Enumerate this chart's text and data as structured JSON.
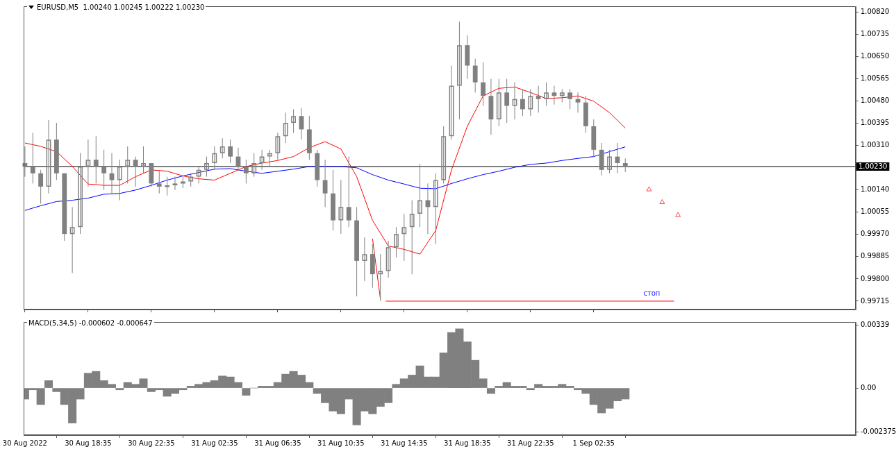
{
  "chart_data": [
    {
      "type": "candlestick",
      "title": "EURUSD,M5  1.00240 1.00245 1.00222 1.00230",
      "color": "#808080",
      "x": [
        "2022-08-30T14:35",
        "2022-08-30T15:05",
        "2022-08-30T15:35",
        "2022-08-30T16:05",
        "2022-08-30T16:35",
        "2022-08-30T17:05",
        "2022-08-30T17:35",
        "2022-08-30T18:05",
        "2022-08-30T18:35",
        "2022-08-30T19:05",
        "2022-08-30T19:35",
        "2022-08-30T20:05",
        "2022-08-30T20:35",
        "2022-08-30T21:05",
        "2022-08-30T21:35",
        "2022-08-30T22:05",
        "2022-08-30T22:35",
        "2022-08-30T23:05",
        "2022-08-30T23:35",
        "2022-08-31T00:05",
        "2022-08-31T00:35",
        "2022-08-31T01:05",
        "2022-08-31T01:35",
        "2022-08-31T02:05",
        "2022-08-31T02:35",
        "2022-08-31T03:05",
        "2022-08-31T03:35",
        "2022-08-31T04:05",
        "2022-08-31T04:35",
        "2022-08-31T05:05",
        "2022-08-31T05:35",
        "2022-08-31T06:05",
        "2022-08-31T06:35",
        "2022-08-31T07:05",
        "2022-08-31T07:35",
        "2022-08-31T08:05",
        "2022-08-31T08:35",
        "2022-08-31T09:05",
        "2022-08-31T09:35",
        "2022-08-31T10:05",
        "2022-08-31T10:35",
        "2022-08-31T11:05",
        "2022-08-31T11:35",
        "2022-08-31T12:05",
        "2022-08-31T12:35",
        "2022-08-31T13:05",
        "2022-08-31T13:35",
        "2022-08-31T14:05",
        "2022-08-31T14:35",
        "2022-08-31T15:05",
        "2022-08-31T15:35",
        "2022-08-31T16:05",
        "2022-08-31T16:35",
        "2022-08-31T17:05",
        "2022-08-31T17:35",
        "2022-08-31T18:05",
        "2022-08-31T18:35",
        "2022-08-31T19:05",
        "2022-08-31T19:35",
        "2022-08-31T20:05",
        "2022-08-31T20:35",
        "2022-08-31T21:05",
        "2022-08-31T21:35",
        "2022-08-31T22:05",
        "2022-08-31T22:35",
        "2022-08-31T23:05",
        "2022-08-31T23:35",
        "2022-09-01T00:05",
        "2022-09-01T00:35",
        "2022-09-01T01:05",
        "2022-09-01T01:35",
        "2022-09-01T02:05",
        "2022-09-01T02:35",
        "2022-09-01T03:05",
        "2022-09-01T03:35",
        "2022-09-01T04:05",
        "2022-09-01T04:35"
      ],
      "ohlc": [
        [
          1.00243,
          1.00307,
          1.00191,
          1.0023
        ],
        [
          1.0023,
          1.00359,
          1.00165,
          1.00204
        ],
        [
          1.00204,
          1.00217,
          1.00088,
          1.00153
        ],
        [
          1.00153,
          1.00408,
          1.00127,
          1.00333
        ],
        [
          1.00333,
          1.00397,
          1.00178,
          1.00204
        ],
        [
          1.00204,
          1.00204,
          0.99946,
          0.99972
        ],
        [
          0.99972,
          1.00075,
          0.99823,
          0.99998
        ],
        [
          0.99998,
          1.00281,
          0.99972,
          1.0023
        ],
        [
          1.0023,
          1.00333,
          1.00153,
          1.00256
        ],
        [
          1.00256,
          1.00346,
          1.00165,
          1.0023
        ],
        [
          1.0023,
          1.00294,
          1.0014,
          1.00204
        ],
        [
          1.00204,
          1.00281,
          1.00127,
          1.00178
        ],
        [
          1.00178,
          1.00256,
          1.00101,
          1.0023
        ],
        [
          1.0023,
          1.00307,
          1.00165,
          1.00256
        ],
        [
          1.00256,
          1.00268,
          1.00153,
          1.0023
        ],
        [
          1.0023,
          1.00307,
          1.00204,
          1.00243
        ],
        [
          1.00243,
          1.00243,
          1.00153,
          1.00165
        ],
        [
          1.00165,
          1.00217,
          1.00127,
          1.00153
        ],
        [
          1.00153,
          1.00191,
          1.00119,
          1.00158
        ],
        [
          1.00158,
          1.00191,
          1.0014,
          1.00165
        ],
        [
          1.00165,
          1.00191,
          1.00147,
          1.00173
        ],
        [
          1.00173,
          1.00204,
          1.00153,
          1.00191
        ],
        [
          1.00191,
          1.0023,
          1.00165,
          1.00217
        ],
        [
          1.00217,
          1.00268,
          1.00191,
          1.00243
        ],
        [
          1.00243,
          1.00307,
          1.00217,
          1.00281
        ],
        [
          1.00281,
          1.00338,
          1.00261,
          1.00307
        ],
        [
          1.00307,
          1.00333,
          1.00243,
          1.00268
        ],
        [
          1.00268,
          1.00302,
          1.00217,
          1.0023
        ],
        [
          1.0023,
          1.00256,
          1.00165,
          1.00204
        ],
        [
          1.00204,
          1.00281,
          1.00191,
          1.00243
        ],
        [
          1.00243,
          1.00294,
          1.00217,
          1.00268
        ],
        [
          1.00268,
          1.00294,
          1.0023,
          1.00281
        ],
        [
          1.00281,
          1.00359,
          1.00256,
          1.00346
        ],
        [
          1.00346,
          1.00436,
          1.0032,
          1.00397
        ],
        [
          1.00397,
          1.00449,
          1.00359,
          1.00423
        ],
        [
          1.00423,
          1.00454,
          1.00333,
          1.00372
        ],
        [
          1.00372,
          1.00423,
          1.00256,
          1.00281
        ],
        [
          1.00281,
          1.00294,
          1.00153,
          1.00178
        ],
        [
          1.00178,
          1.00256,
          1.00075,
          1.00127
        ],
        [
          1.00127,
          1.00217,
          0.99985,
          1.00024
        ],
        [
          1.00024,
          1.00178,
          0.99972,
          1.00075
        ],
        [
          1.00075,
          1.00268,
          0.99998,
          1.00024
        ],
        [
          1.00024,
          1.00075,
          0.99733,
          0.99869
        ],
        [
          0.99869,
          0.99959,
          0.99792,
          0.99895
        ],
        [
          0.99895,
          0.99933,
          0.99766,
          0.99818
        ],
        [
          0.99818,
          0.99895,
          0.99715,
          0.9983
        ],
        [
          0.9983,
          0.99946,
          0.99805,
          0.99921
        ],
        [
          0.99921,
          0.99998,
          0.99882,
          0.99972
        ],
        [
          0.99972,
          1.00049,
          0.99869,
          0.99998
        ],
        [
          0.99998,
          1.00101,
          0.99818,
          1.00049
        ],
        [
          1.00049,
          1.0024,
          0.99998,
          1.00101
        ],
        [
          1.00101,
          1.00165,
          0.99972,
          1.00075
        ],
        [
          1.00075,
          1.00204,
          0.99933,
          1.00178
        ],
        [
          1.00178,
          1.00384,
          1.00165,
          1.00346
        ],
        [
          1.00346,
          1.00616,
          1.00333,
          1.00539
        ],
        [
          1.00539,
          1.00784,
          1.0041,
          1.00694
        ],
        [
          1.00694,
          1.00732,
          1.00565,
          1.00616
        ],
        [
          1.00616,
          1.00642,
          1.00513,
          1.00552
        ],
        [
          1.00552,
          1.00629,
          1.00462,
          1.005
        ],
        [
          1.005,
          1.00565,
          1.00351,
          1.0041
        ],
        [
          1.0041,
          1.00565,
          1.00384,
          1.00513
        ],
        [
          1.00513,
          1.00565,
          1.00397,
          1.00462
        ],
        [
          1.00462,
          1.00552,
          1.0041,
          1.00488
        ],
        [
          1.00488,
          1.00526,
          1.00423,
          1.00449
        ],
        [
          1.00449,
          1.00526,
          1.00423,
          1.005
        ],
        [
          1.005,
          1.00539,
          1.00436,
          1.00488
        ],
        [
          1.00488,
          1.00552,
          1.00462,
          1.00513
        ],
        [
          1.00513,
          1.00539,
          1.00467,
          1.005
        ],
        [
          1.005,
          1.00526,
          1.00475,
          1.00513
        ],
        [
          1.00513,
          1.00526,
          1.00449,
          1.00488
        ],
        [
          1.00488,
          1.00513,
          1.00436,
          1.00475
        ],
        [
          1.00475,
          1.005,
          1.00359,
          1.00384
        ],
        [
          1.00384,
          1.0041,
          1.00268,
          1.00294
        ],
        [
          1.00294,
          1.0032,
          1.00196,
          1.00217
        ],
        [
          1.00217,
          1.00294,
          1.00204,
          1.00268
        ],
        [
          1.00268,
          1.0032,
          1.00204,
          1.00243
        ],
        [
          1.00243,
          1.00261,
          1.00209,
          1.0023
        ]
      ],
      "series": [
        {
          "type": "line",
          "color": "#ff0000",
          "x": [
            "2022-08-30T14:35",
            "2022-08-30T15:35",
            "2022-08-30T16:35",
            "2022-08-30T17:35",
            "2022-08-30T18:35",
            "2022-08-30T19:35",
            "2022-08-30T20:35",
            "2022-08-30T21:35",
            "2022-08-30T22:35",
            "2022-08-30T23:35",
            "2022-08-31T00:35",
            "2022-08-31T01:35",
            "2022-08-31T02:35",
            "2022-08-31T03:35",
            "2022-08-31T04:35",
            "2022-08-31T05:35",
            "2022-08-31T06:35",
            "2022-08-31T07:35",
            "2022-08-31T08:35",
            "2022-08-31T09:35",
            "2022-08-31T10:35",
            "2022-08-31T11:35",
            "2022-08-31T12:35",
            "2022-08-31T13:35",
            "2022-08-31T14:35",
            "2022-08-31T15:35",
            "2022-08-31T16:35",
            "2022-08-31T17:35",
            "2022-08-31T18:35",
            "2022-08-31T19:35",
            "2022-08-31T20:35",
            "2022-08-31T21:35",
            "2022-08-31T22:35",
            "2022-08-31T23:35",
            "2022-09-01T00:35",
            "2022-09-01T01:35",
            "2022-09-01T02:35",
            "2022-09-01T03:35",
            "2022-09-01T04:35"
          ],
          "values": [
            1.0032,
            1.00307,
            1.00287,
            1.0023,
            1.00163,
            1.00158,
            1.00158,
            1.00191,
            1.00217,
            1.00212,
            1.00194,
            1.00183,
            1.00178,
            1.00204,
            1.0023,
            1.00243,
            1.00253,
            1.00268,
            1.00302,
            1.00325,
            1.00297,
            1.00191,
            1.00024,
            0.99926,
            0.99913,
            0.99895,
            0.99985,
            1.00217,
            1.00384,
            1.005,
            1.00529,
            1.00534,
            1.00513,
            1.0049,
            1.00493,
            1.005,
            1.0048,
            1.00436,
            1.00377
          ]
        },
        {
          "type": "line",
          "color": "#0000ff",
          "x": [
            "2022-08-30T14:35",
            "2022-08-30T15:35",
            "2022-08-30T16:35",
            "2022-08-30T17:35",
            "2022-08-30T18:35",
            "2022-08-30T19:35",
            "2022-08-30T20:35",
            "2022-08-30T21:35",
            "2022-08-30T22:35",
            "2022-08-30T23:35",
            "2022-08-31T00:35",
            "2022-08-31T01:35",
            "2022-08-31T02:35",
            "2022-08-31T03:35",
            "2022-08-31T04:35",
            "2022-08-31T05:35",
            "2022-08-31T06:35",
            "2022-08-31T07:35",
            "2022-08-31T08:35",
            "2022-08-31T09:35",
            "2022-08-31T10:35",
            "2022-08-31T11:35",
            "2022-08-31T12:35",
            "2022-08-31T13:35",
            "2022-08-31T14:35",
            "2022-08-31T15:35",
            "2022-08-31T16:35",
            "2022-08-31T17:35",
            "2022-08-31T18:35",
            "2022-08-31T19:35",
            "2022-08-31T20:35",
            "2022-08-31T21:35",
            "2022-08-31T22:35",
            "2022-08-31T23:35",
            "2022-09-01T00:35",
            "2022-09-01T01:35",
            "2022-09-01T02:35",
            "2022-09-01T03:35",
            "2022-09-01T04:35"
          ],
          "values": [
            1.00062,
            1.0008,
            1.00096,
            1.00101,
            1.00109,
            1.00124,
            1.00127,
            1.0014,
            1.00158,
            1.00178,
            1.00194,
            1.00207,
            1.0022,
            1.00222,
            1.00212,
            1.00204,
            1.00212,
            1.0022,
            1.0023,
            1.0023,
            1.0023,
            1.00225,
            1.00199,
            1.00178,
            1.00163,
            1.00147,
            1.00145,
            1.00165,
            1.00183,
            1.00199,
            1.00212,
            1.00227,
            1.00238,
            1.00243,
            1.00253,
            1.00261,
            1.00268,
            1.00287,
            1.00305
          ]
        },
        {
          "type": "line",
          "color": "#ff0000",
          "x": [
            "2022-08-31T12:35",
            "2022-08-31T13:05"
          ],
          "values": [
            0.99954,
            0.99723
          ]
        },
        {
          "name": "стоп",
          "type": "line",
          "color": "#ff0000",
          "x": [
            "2022-08-31T13:25",
            "2022-09-01T07:40"
          ],
          "values": [
            0.99715,
            0.99715
          ]
        },
        {
          "type": "scatter",
          "marker": "triangle",
          "color": "#ff4040",
          "x": [
            "2022-09-01T06:05",
            "2022-09-01T06:55",
            "2022-09-01T07:55"
          ],
          "values": [
            1.00142,
            1.00093,
            1.00044
          ]
        }
      ],
      "ref_lines": [
        {
          "axis": "y",
          "value": 1.0023,
          "label": "1.00230",
          "color": "#000000"
        }
      ],
      "xlim": [
        "2022-08-30T14:30",
        "2022-09-01T19:10"
      ],
      "xticks": [
        "2022-08-30T14:35",
        "2022-08-30T18:35",
        "2022-08-30T22:35",
        "2022-08-31T02:35",
        "2022-08-31T06:35",
        "2022-08-31T10:35",
        "2022-08-31T14:35",
        "2022-08-31T18:35",
        "2022-08-31T22:35",
        "2022-09-01T02:35"
      ],
      "ylim": [
        0.99683,
        1.00843
      ],
      "yticks": [
        {
          "value": 1.0082,
          "label": "1.00820"
        },
        {
          "value": 1.00735,
          "label": "1.00735"
        },
        {
          "value": 1.0065,
          "label": "1.00650"
        },
        {
          "value": 1.00565,
          "label": "1.00565"
        },
        {
          "value": 1.0048,
          "label": "1.00480"
        },
        {
          "value": 1.00395,
          "label": "1.00395"
        },
        {
          "value": 1.0031,
          "label": "1.00310"
        },
        {
          "value": 1.0014,
          "label": "1.00140"
        },
        {
          "value": 1.00055,
          "label": "1.00055"
        },
        {
          "value": 0.9997,
          "label": "0.99970"
        },
        {
          "value": 0.99885,
          "label": "0.99885"
        },
        {
          "value": 0.998,
          "label": "0.99800"
        },
        {
          "value": 0.99715,
          "label": "0.99715"
        }
      ],
      "tick_labels": "y"
    },
    {
      "type": "bar",
      "title": "MACD(5,34,5) -0.000602 -0.000647",
      "color": "#808080",
      "x": [
        "2022-08-30T14:35",
        "2022-08-30T15:05",
        "2022-08-30T15:35",
        "2022-08-30T16:05",
        "2022-08-30T16:35",
        "2022-08-30T17:05",
        "2022-08-30T17:35",
        "2022-08-30T18:05",
        "2022-08-30T18:35",
        "2022-08-30T19:05",
        "2022-08-30T19:35",
        "2022-08-30T20:05",
        "2022-08-30T20:35",
        "2022-08-30T21:05",
        "2022-08-30T21:35",
        "2022-08-30T22:05",
        "2022-08-30T22:35",
        "2022-08-30T23:05",
        "2022-08-30T23:35",
        "2022-08-31T00:05",
        "2022-08-31T00:35",
        "2022-08-31T01:05",
        "2022-08-31T01:35",
        "2022-08-31T02:05",
        "2022-08-31T02:35",
        "2022-08-31T03:05",
        "2022-08-31T03:35",
        "2022-08-31T04:05",
        "2022-08-31T04:35",
        "2022-08-31T05:05",
        "2022-08-31T05:35",
        "2022-08-31T06:05",
        "2022-08-31T06:35",
        "2022-08-31T07:05",
        "2022-08-31T07:35",
        "2022-08-31T08:05",
        "2022-08-31T08:35",
        "2022-08-31T09:05",
        "2022-08-31T09:35",
        "2022-08-31T10:05",
        "2022-08-31T10:35",
        "2022-08-31T11:05",
        "2022-08-31T11:35",
        "2022-08-31T12:05",
        "2022-08-31T12:35",
        "2022-08-31T13:05",
        "2022-08-31T13:35",
        "2022-08-31T14:05",
        "2022-08-31T14:35",
        "2022-08-31T15:05",
        "2022-08-31T15:35",
        "2022-08-31T16:05",
        "2022-08-31T16:35",
        "2022-08-31T17:05",
        "2022-08-31T17:35",
        "2022-08-31T18:05",
        "2022-08-31T18:35",
        "2022-08-31T19:05",
        "2022-08-31T19:35",
        "2022-08-31T20:05",
        "2022-08-31T20:35",
        "2022-08-31T21:05",
        "2022-08-31T21:35",
        "2022-08-31T22:05",
        "2022-08-31T22:35",
        "2022-08-31T23:05",
        "2022-08-31T23:35",
        "2022-09-01T00:05",
        "2022-09-01T00:35",
        "2022-09-01T01:05",
        "2022-09-01T01:35",
        "2022-09-01T02:05",
        "2022-09-01T02:35",
        "2022-09-01T03:05",
        "2022-09-01T03:35",
        "2022-09-01T04:05",
        "2022-09-01T04:35"
      ],
      "values": [
        -0.0006,
        -0.0001,
        -0.0009,
        0.0004,
        -0.0002,
        -0.0009,
        -0.0019,
        -0.0006,
        0.0008,
        0.0009,
        0.0004,
        0.0002,
        -0.0001,
        0.0003,
        0.0002,
        0.0005,
        -0.0002,
        -0.0001,
        -0.00045,
        -0.0003,
        -0.0001,
        0.0001,
        0.0002,
        0.0003,
        0.0004,
        0.00065,
        0.0006,
        0.0003,
        -0.0004,
        0,
        0.0001,
        0.0001,
        0.0003,
        0.00075,
        0.0009,
        0.0007,
        0.0003,
        -0.0003,
        -0.0008,
        -0.00125,
        -0.0014,
        -0.0006,
        -0.002,
        -0.00125,
        -0.0014,
        -0.001,
        -0.0008,
        0.0002,
        0.0005,
        0.0007,
        0.0012,
        0.0006,
        0.0006,
        0.0019,
        0.003,
        0.0032,
        0.0025,
        0.0015,
        0.0005,
        -0.0003,
        0.0001,
        0.0003,
        0.0001,
        0.0001,
        -0.0001,
        0.0002,
        0.0001,
        0.0001,
        0.0002,
        0.0001,
        -0.0001,
        -0.0003,
        -0.0009,
        -0.00135,
        -0.0011,
        -0.0007,
        -0.0006
      ],
      "xlim": [
        "2022-08-30T14:30",
        "2022-09-01T19:10"
      ],
      "xticks": [
        {
          "value": "2022-08-30T14:35",
          "label": "30 Aug 2022"
        },
        {
          "value": "2022-08-30T18:35",
          "label": "30 Aug 18:35"
        },
        {
          "value": "2022-08-30T22:35",
          "label": "30 Aug 22:35"
        },
        {
          "value": "2022-08-31T02:35",
          "label": "31 Aug 02:35"
        },
        {
          "value": "2022-08-31T06:35",
          "label": "31 Aug 06:35"
        },
        {
          "value": "2022-08-31T10:35",
          "label": "31 Aug 10:35"
        },
        {
          "value": "2022-08-31T14:35",
          "label": "31 Aug 14:35"
        },
        {
          "value": "2022-08-31T18:35",
          "label": "31 Aug 18:35"
        },
        {
          "value": "2022-08-31T22:35",
          "label": "31 Aug 22:35"
        },
        {
          "value": "2022-09-01T02:35",
          "label": "1 Sep 02:35"
        }
      ],
      "ylim": [
        -0.00255,
        0.00357
      ],
      "yticks": [
        0.00339,
        {
          "value": 0,
          "label": "0.00"
        },
        -0.002375
      ]
    }
  ]
}
